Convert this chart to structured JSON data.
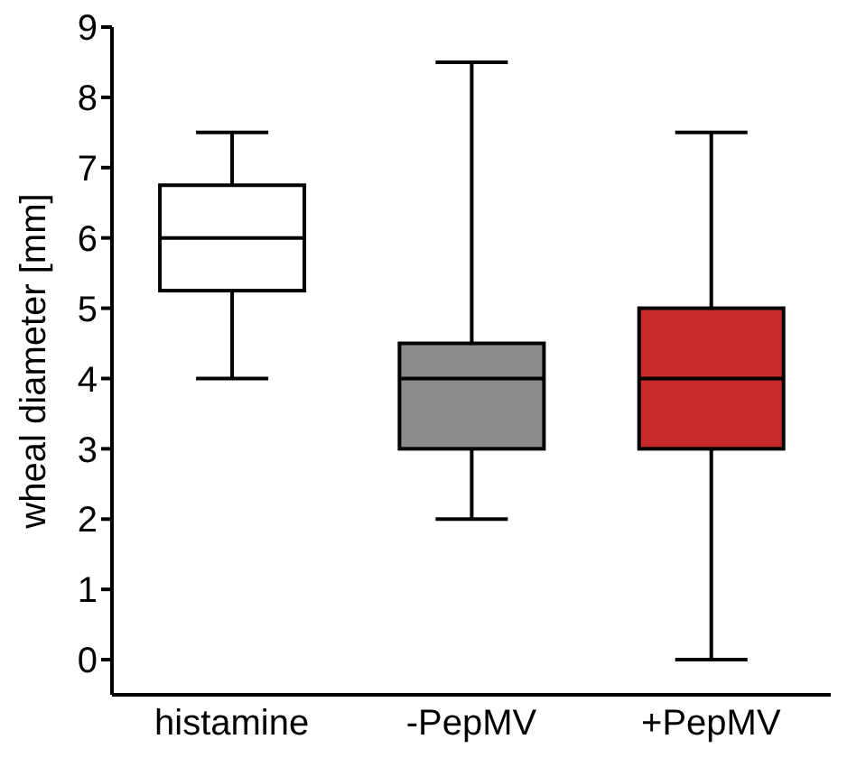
{
  "chart_data": {
    "type": "box",
    "categories": [
      "histamine",
      "-PepMV",
      "+PepMV"
    ],
    "ylabel": "wheal diameter [mm]",
    "ylim": [
      -0.5,
      9
    ],
    "yticks": [
      0,
      1,
      2,
      3,
      4,
      5,
      6,
      7,
      8,
      9
    ],
    "colors": [
      "#ffffff",
      "#8a8c8e",
      "#c62a2a"
    ],
    "boxes": [
      {
        "low": 4,
        "q1": 5.25,
        "median": 6,
        "q3": 6.75,
        "high": 7.5
      },
      {
        "low": 2,
        "q1": 3,
        "median": 4,
        "q3": 4.5,
        "high": 8.5
      },
      {
        "low": 0,
        "q1": 3,
        "median": 4,
        "q3": 5,
        "high": 7.5
      }
    ]
  }
}
